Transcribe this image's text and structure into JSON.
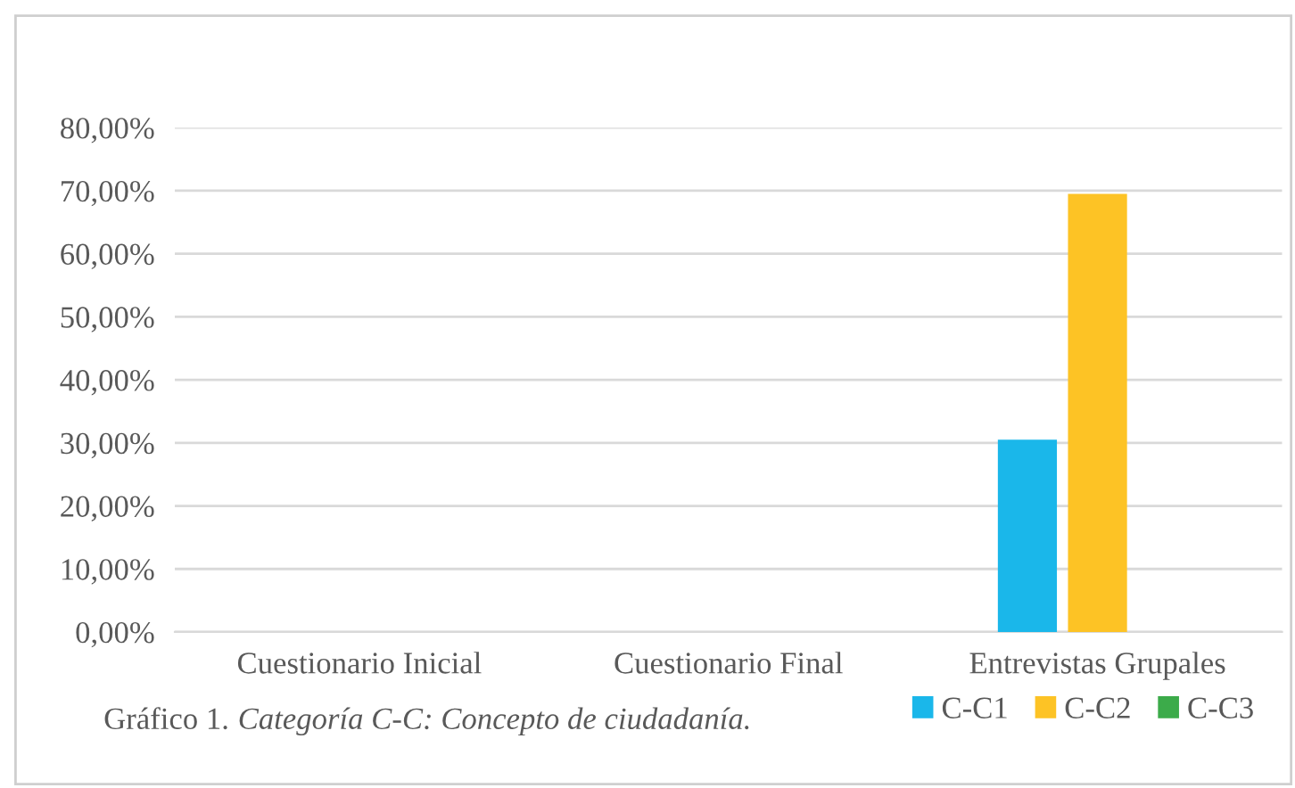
{
  "chart_data": {
    "type": "bar",
    "categories": [
      "Cuestionario Inicial",
      "Cuestionario Final",
      "Entrevistas Grupales"
    ],
    "series": [
      {
        "name": "C-C1",
        "color": "#1ab7ea",
        "values": [
          0,
          0,
          30.5
        ]
      },
      {
        "name": "C-C2",
        "color": "#fdc325",
        "values": [
          0,
          0,
          69.5
        ]
      },
      {
        "name": "C-C3",
        "color": "#3cab4a",
        "values": [
          0,
          0,
          0
        ]
      }
    ],
    "ylim": [
      0,
      80
    ],
    "yticks": [
      {
        "value": 0,
        "label": "0,00%"
      },
      {
        "value": 10,
        "label": "10,00%"
      },
      {
        "value": 20,
        "label": "20,00%"
      },
      {
        "value": 30,
        "label": "30,00%"
      },
      {
        "value": 40,
        "label": "40,00%"
      },
      {
        "value": 50,
        "label": "50,00%"
      },
      {
        "value": 60,
        "label": "60,00%"
      },
      {
        "value": 70,
        "label": "70,00%"
      },
      {
        "value": 80,
        "label": "80,00%"
      }
    ],
    "grid": "y",
    "legend": "bottom right",
    "annotations": [
      "Gráfico 1.",
      "Categoría C-C: Concepto de ciudadanía."
    ]
  }
}
